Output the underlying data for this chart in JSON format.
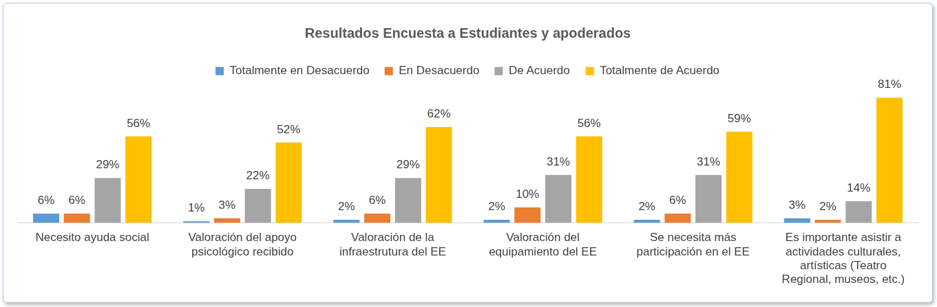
{
  "chart_data": {
    "type": "bar",
    "title": "Resultados Encuesta a Estudiantes y apoderados",
    "categories": [
      "Necesito ayuda social",
      "Valoración del apoyo psicológico recibido",
      "Valoración de la infraestrutura del EE",
      "Valoración del equipamiento del EE",
      "Se necesita más participación en el EE",
      "Es importante asistir a actividades culturales, artísticas (Teatro Regional, museos, etc.)"
    ],
    "series": [
      {
        "name": "Totalmente en Desacuerdo",
        "color": "#5b9bd5",
        "values": [
          6,
          1,
          2,
          2,
          2,
          3
        ],
        "value_labels": [
          "6%",
          "1%",
          "2%",
          "2%",
          "2%",
          "3%"
        ]
      },
      {
        "name": "En Desacuerdo",
        "color": "#ed7d31",
        "values": [
          6,
          3,
          6,
          10,
          6,
          2
        ],
        "value_labels": [
          "6%",
          "3%",
          "6%",
          "10%",
          "6%",
          "2%"
        ]
      },
      {
        "name": "De Acuerdo",
        "color": "#a5a5a5",
        "values": [
          29,
          22,
          29,
          31,
          31,
          14
        ],
        "value_labels": [
          "29%",
          "22%",
          "29%",
          "31%",
          "31%",
          "14%"
        ]
      },
      {
        "name": "Totalmente de Acuerdo",
        "color": "#ffc000",
        "values": [
          56,
          52,
          62,
          56,
          59,
          81
        ],
        "value_labels": [
          "56%",
          "52%",
          "62%",
          "56%",
          "59%",
          "81%"
        ]
      }
    ],
    "legend": "top",
    "grid": false
  }
}
